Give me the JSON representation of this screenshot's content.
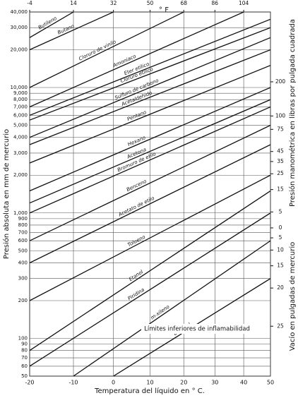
{
  "chart_data": {
    "type": "line",
    "xlabel": "Temperatura del líquido en ° C.",
    "ylabel": "Presión absoluta en mm de mercurio",
    "x2label": "° F",
    "y2label": "Presión manométrica en libras por pulgada cuadrada",
    "y3label": "Vacío en pulgadas de mercurio",
    "annotation": "Límites inferiores de inflamabilidad",
    "xscale": "cox",
    "ylog": true,
    "grid": true,
    "color": "#111111",
    "xlim": [
      -20,
      50
    ],
    "ylim": [
      50,
      40000
    ],
    "xticks": [
      -20,
      -10,
      0,
      10,
      20,
      30,
      40,
      50
    ],
    "x2ticks": [
      -4,
      14,
      32,
      50,
      68,
      86,
      104
    ],
    "yticks": [
      {
        "value": 40000,
        "label": "40,000"
      },
      {
        "value": 30000,
        "label": "30,000"
      },
      {
        "value": 20000,
        "label": "20,000"
      },
      {
        "value": 10000,
        "label": "10,000"
      },
      {
        "value": 9000,
        "label": "9,000"
      },
      {
        "value": 8000,
        "label": "8,000"
      },
      {
        "value": 7000,
        "label": "7,000"
      },
      {
        "value": 6000,
        "label": "6,000"
      },
      {
        "value": 5000,
        "label": "5,000"
      },
      {
        "value": 4000,
        "label": "4,000"
      },
      {
        "value": 3000,
        "label": "3,000"
      },
      {
        "value": 2000,
        "label": "2,000"
      },
      {
        "value": 1000,
        "label": "1,000"
      },
      900,
      800,
      700,
      600,
      500,
      400,
      300,
      200,
      100,
      90,
      80,
      70,
      60,
      50
    ],
    "y2ticks": [
      200,
      100,
      75,
      45,
      35,
      25,
      15,
      5,
      0
    ],
    "y3ticks": [
      5,
      10,
      15,
      20,
      25
    ],
    "series": [
      {
        "name": "Butileno",
        "x": [
          -20,
          -10
        ],
        "values": [
          25000,
          40000
        ]
      },
      {
        "name": "Butano",
        "x": [
          -20,
          0
        ],
        "values": [
          20000,
          40000
        ]
      },
      {
        "name": "Cloruro de vinilo",
        "x": [
          -20,
          20
        ],
        "values": [
          10000,
          40000
        ]
      },
      {
        "name": "Amoniaco",
        "x": [
          -20,
          40
        ],
        "values": [
          7000,
          40000
        ]
      },
      {
        "name": "Eter etílico",
        "x": [
          -20,
          50
        ],
        "values": [
          6000,
          35000
        ]
      },
      {
        "name": "Cloruro etílico",
        "x": [
          -20,
          50
        ],
        "values": [
          5500,
          30000
        ]
      },
      {
        "name": "Sulfuro de carbono",
        "x": [
          -20,
          50
        ],
        "values": [
          4000,
          25000
        ]
      },
      {
        "name": "Acetaldehido",
        "x": [
          -20,
          50
        ],
        "values": [
          3500,
          20000
        ]
      },
      {
        "name": "Pentano",
        "x": [
          -20,
          50
        ],
        "values": [
          2500,
          15000
        ]
      },
      {
        "name": "Hexano",
        "x": [
          -20,
          50
        ],
        "values": [
          1500,
          10000
        ]
      },
      {
        "name": "Acetona",
        "x": [
          -20,
          50
        ],
        "values": [
          1200,
          8000
        ]
      },
      {
        "name": "Bromuro de etilo",
        "x": [
          -20,
          50
        ],
        "values": [
          1000,
          7000
        ]
      },
      {
        "name": "Benceno",
        "x": [
          -20,
          50
        ],
        "values": [
          600,
          5000
        ]
      },
      {
        "name": "Acetato de etilo",
        "x": [
          -20,
          50
        ],
        "values": [
          400,
          3500
        ]
      },
      {
        "name": "Tolueno",
        "x": [
          -20,
          50
        ],
        "values": [
          200,
          2000
        ]
      },
      {
        "name": "Etanol",
        "x": [
          -20,
          50
        ],
        "values": [
          80,
          1500
        ]
      },
      {
        "name": "Piridina",
        "x": [
          -20,
          50
        ],
        "values": [
          60,
          1000
        ]
      },
      {
        "name": "m-xileno",
        "x": [
          -10,
          50
        ],
        "values": [
          50,
          600
        ]
      },
      {
        "name": "Butanol",
        "x": [
          0,
          50
        ],
        "values": [
          50,
          300
        ]
      }
    ]
  }
}
